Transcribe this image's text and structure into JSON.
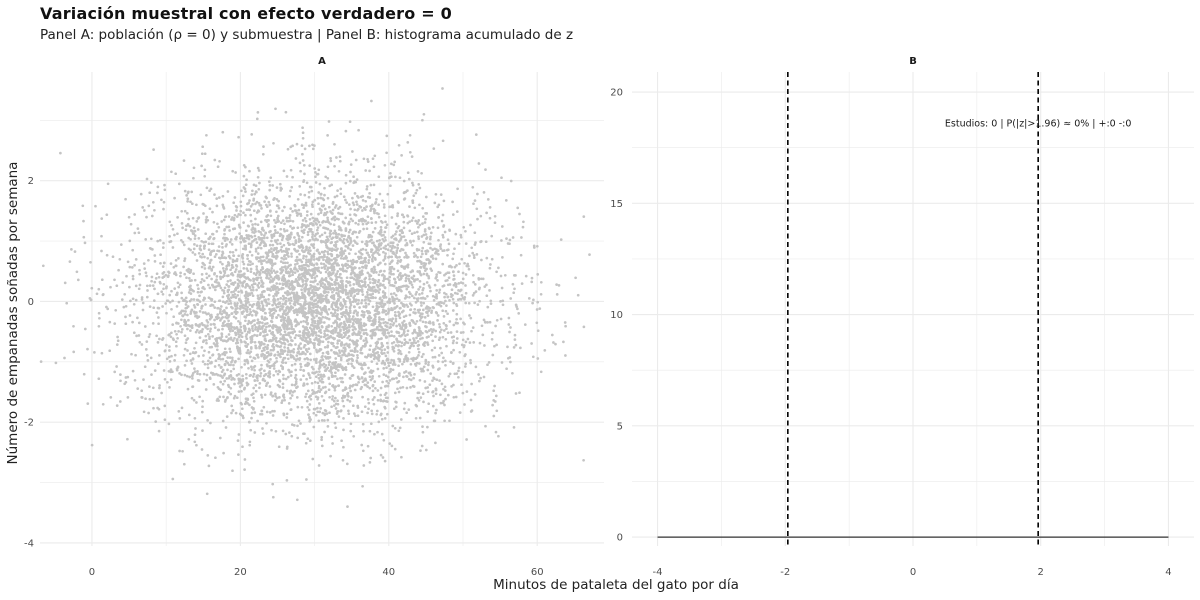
{
  "title": "Variación muestral con efecto verdadero = 0",
  "subtitle": "Panel A: población (ρ = 0) y submuestra | Panel B: histograma acumulado de z",
  "xlabel": "Minutos de pataleta del gato por día",
  "ylabel": "Número de empanadas soñadas por semana",
  "colors": {
    "points": "#c4c4c4",
    "grid": "#ebebeb",
    "zero_line": "#333333",
    "critical_line": "#000000"
  },
  "chart_data": [
    {
      "panel": "A",
      "type": "scatter",
      "strip_label": "A",
      "x_ticks": [
        "0",
        "20",
        "40",
        "60"
      ],
      "y_ticks": [
        "-4",
        "-2",
        "0",
        "2"
      ],
      "xlim": [
        -7,
        69
      ],
      "ylim": [
        -4.05,
        3.8
      ],
      "grid": true,
      "population": {
        "n": 6000,
        "x_mean": 30,
        "x_sd": 11.5,
        "y_mean": 0,
        "y_sd": 1.0,
        "rho": 0
      }
    },
    {
      "panel": "B",
      "type": "line",
      "strip_label": "B",
      "x_ticks": [
        "-4",
        "-2",
        "0",
        "2",
        "4"
      ],
      "y_ticks": [
        "0",
        "5",
        "10",
        "15",
        "20"
      ],
      "xlim": [
        -4.4,
        4.4
      ],
      "ylim": [
        -0.4,
        20.9
      ],
      "grid": true,
      "baseline": {
        "x": [
          -4,
          4
        ],
        "y": [
          0,
          0
        ]
      },
      "critical_values": [
        -1.96,
        1.96
      ],
      "annotation": "Estudios: 0 | P(|z|>1.96) ≈ 0% | +:0  -:0",
      "annotation_x": 1.96,
      "annotation_y": 18.6
    }
  ]
}
